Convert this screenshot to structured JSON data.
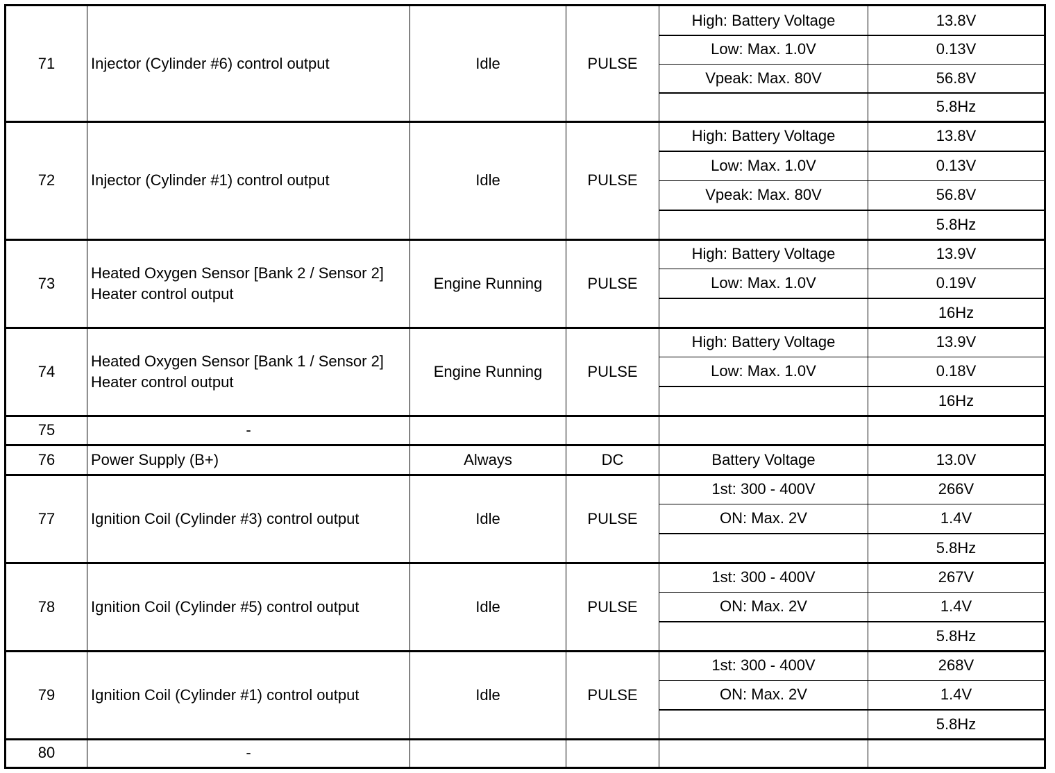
{
  "rows": [
    {
      "pin": "71",
      "description": "Injector (Cylinder #6) control output",
      "condition": "Idle",
      "type": "PULSE",
      "specs": [
        {
          "spec": "High: Battery Voltage",
          "value": "13.8V"
        },
        {
          "spec": "Low: Max. 1.0V",
          "value": "0.13V"
        },
        {
          "spec": "Vpeak: Max. 80V",
          "value": "56.8V"
        },
        {
          "spec": "",
          "value": "5.8Hz"
        }
      ]
    },
    {
      "pin": "72",
      "description": "Injector (Cylinder #1) control output",
      "condition": "Idle",
      "type": "PULSE",
      "specs": [
        {
          "spec": "High: Battery Voltage",
          "value": "13.8V"
        },
        {
          "spec": "Low: Max. 1.0V",
          "value": "0.13V"
        },
        {
          "spec": "Vpeak: Max. 80V",
          "value": "56.8V"
        },
        {
          "spec": "",
          "value": "5.8Hz"
        }
      ]
    },
    {
      "pin": "73",
      "description": "Heated Oxygen Sensor [Bank 2 / Sensor 2] Heater control output",
      "condition": "Engine Running",
      "type": "PULSE",
      "specs": [
        {
          "spec": "High: Battery Voltage",
          "value": "13.9V"
        },
        {
          "spec": "Low: Max. 1.0V",
          "value": "0.19V"
        },
        {
          "spec": "",
          "value": "16Hz"
        }
      ]
    },
    {
      "pin": "74",
      "description": "Heated Oxygen Sensor [Bank 1 / Sensor 2] Heater control output",
      "condition": "Engine Running",
      "type": "PULSE",
      "specs": [
        {
          "spec": "High: Battery Voltage",
          "value": "13.9V"
        },
        {
          "spec": "Low: Max. 1.0V",
          "value": "0.18V"
        },
        {
          "spec": "",
          "value": "16Hz"
        }
      ]
    },
    {
      "pin": "75",
      "description": "-",
      "condition": "",
      "type": "",
      "specs": [
        {
          "spec": "",
          "value": ""
        }
      ]
    },
    {
      "pin": "76",
      "description": "Power Supply (B+)",
      "condition": "Always",
      "type": "DC",
      "specs": [
        {
          "spec": "Battery Voltage",
          "value": "13.0V"
        }
      ]
    },
    {
      "pin": "77",
      "description": "Ignition Coil (Cylinder #3) control output",
      "condition": "Idle",
      "type": "PULSE",
      "specs": [
        {
          "spec": "1st: 300 - 400V",
          "value": "266V"
        },
        {
          "spec": "ON: Max. 2V",
          "value": "1.4V"
        },
        {
          "spec": "",
          "value": "5.8Hz"
        }
      ]
    },
    {
      "pin": "78",
      "description": "Ignition Coil (Cylinder #5) control output",
      "condition": "Idle",
      "type": "PULSE",
      "specs": [
        {
          "spec": "1st: 300 - 400V",
          "value": "267V"
        },
        {
          "spec": "ON: Max. 2V",
          "value": "1.4V"
        },
        {
          "spec": "",
          "value": "5.8Hz"
        }
      ]
    },
    {
      "pin": "79",
      "description": "Ignition Coil (Cylinder #1) control output",
      "condition": "Idle",
      "type": "PULSE",
      "specs": [
        {
          "spec": "1st: 300 - 400V",
          "value": "268V"
        },
        {
          "spec": "ON: Max. 2V",
          "value": "1.4V"
        },
        {
          "spec": "",
          "value": "5.8Hz"
        }
      ]
    },
    {
      "pin": "80",
      "description": "-",
      "condition": "",
      "type": "",
      "specs": [
        {
          "spec": "",
          "value": ""
        }
      ]
    }
  ]
}
